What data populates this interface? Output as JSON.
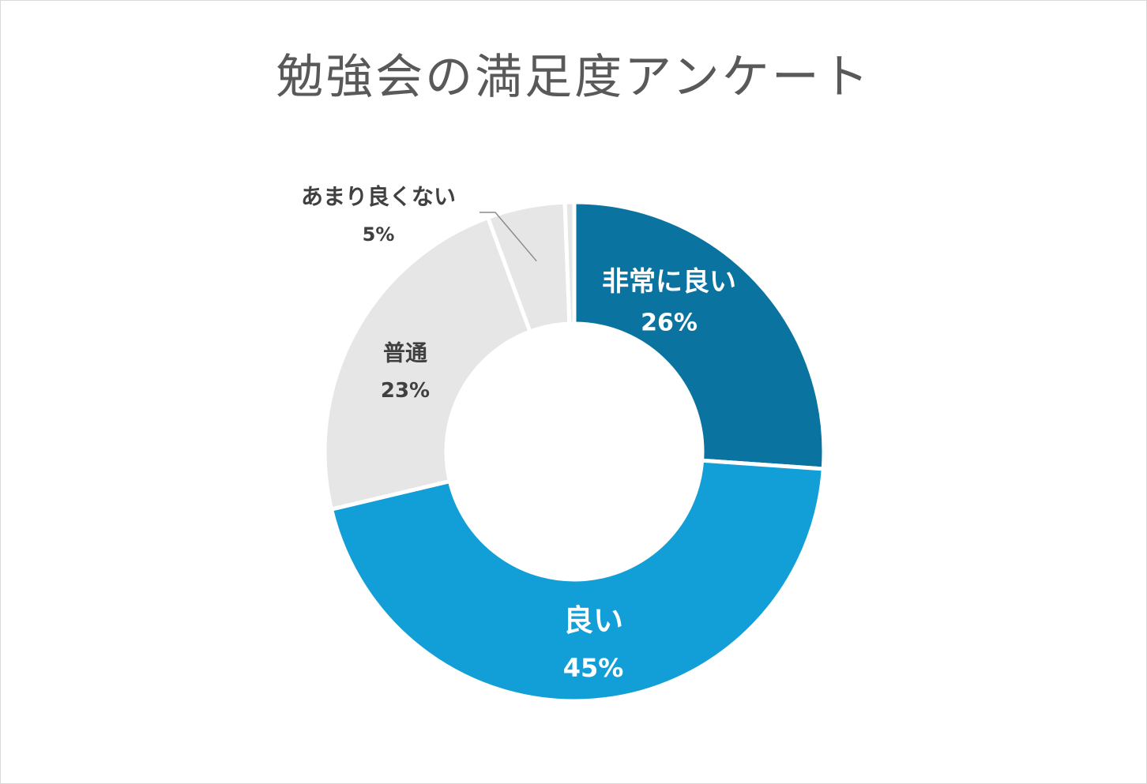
{
  "chart_data": {
    "type": "pie",
    "title": "勉強会の満足度アンケート",
    "categories": [
      "非常に良い",
      "良い",
      "普通",
      "あまり良くない",
      ""
    ],
    "values": [
      26,
      45,
      23,
      5,
      0.6
    ],
    "value_labels": [
      "26%",
      "45%",
      "23%",
      "5%",
      ""
    ],
    "colors": [
      "#0a73a0",
      "#129ed6",
      "#e6e6e6",
      "#e6e6e6",
      "#e6e6e6"
    ],
    "label_colors": [
      "#ffffff",
      "#ffffff",
      "#404040",
      "#404040",
      "#404040"
    ],
    "donut": true,
    "start_angle_deg": 0,
    "direction": "clockwise",
    "leader_line_for": [
      "あまり良くない"
    ]
  }
}
